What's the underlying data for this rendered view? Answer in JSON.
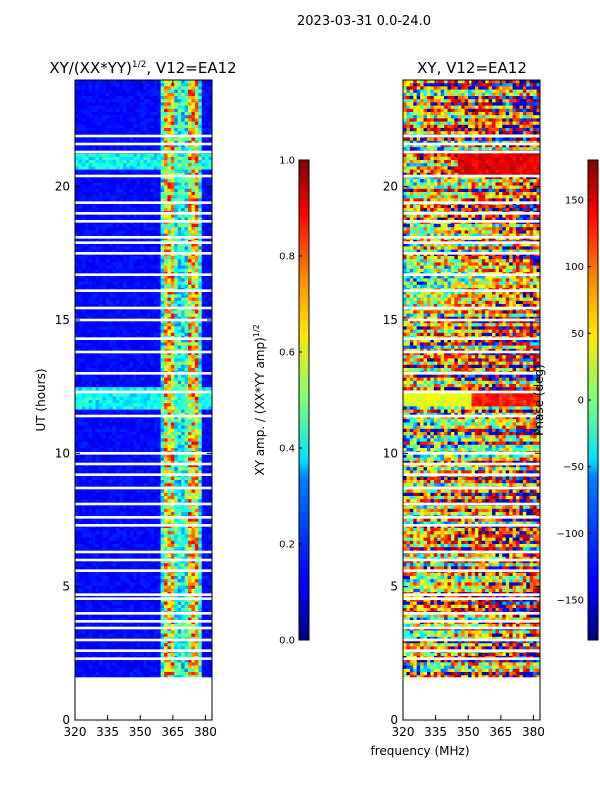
{
  "figure": {
    "suptitle": "2023-03-31 0.0-24.0",
    "xlabel": "frequency (MHz)"
  },
  "chart_data": [
    {
      "type": "heatmap",
      "title": "XY/(XX*YY)^1/2, V12=EA12",
      "title_main": "XY/(XX*YY)",
      "title_sup": "1/2",
      "title_tail": ", V12=EA12",
      "xlabel": "frequency (MHz)",
      "ylabel": "UT (hours)",
      "xlim": [
        320,
        383
      ],
      "ylim": [
        0,
        24
      ],
      "xticks": [
        320,
        335,
        350,
        365,
        380
      ],
      "yticks": [
        0,
        5,
        10,
        15,
        20
      ],
      "data_start_hour": 1.6,
      "bright_band_mhz": [
        361,
        365,
        372,
        376
      ],
      "gap_hours": [
        2.3,
        2.6,
        3.0,
        3.45,
        3.7,
        4.0,
        4.55,
        4.7,
        5.6,
        6.0,
        6.3,
        7.3,
        7.6,
        8.1,
        8.7,
        9.2,
        9.6,
        10.0,
        11.4,
        12.3,
        13.0,
        13.8,
        14.3,
        15.0,
        15.45,
        16.1,
        16.7,
        17.5,
        17.9,
        18.1,
        18.7,
        19.0,
        19.4,
        20.4,
        21.3,
        21.6,
        21.9
      ],
      "colorbar": {
        "label_main": "XY amp. / (XX*YY amp)",
        "label_sup": "1/2",
        "min": 0.0,
        "max": 1.0,
        "ticks": [
          "0.0",
          "0.2",
          "0.4",
          "0.6",
          "0.8",
          "1.0"
        ],
        "colormap": "jet"
      }
    },
    {
      "type": "heatmap",
      "title": "XY, V12=EA12",
      "xlabel": "frequency (MHz)",
      "ylabel": "",
      "xlim": [
        320,
        383
      ],
      "ylim": [
        0,
        24
      ],
      "xticks": [
        320,
        335,
        350,
        365,
        380
      ],
      "yticks": [
        0,
        5,
        10,
        15,
        20
      ],
      "data_start_hour": 1.6,
      "gap_hours": [
        2.3,
        2.6,
        3.0,
        3.45,
        3.7,
        4.0,
        4.55,
        4.7,
        5.6,
        6.0,
        6.3,
        7.3,
        7.6,
        8.1,
        8.7,
        9.2,
        9.6,
        10.0,
        11.4,
        12.3,
        13.0,
        13.8,
        14.3,
        15.0,
        15.45,
        16.1,
        16.7,
        17.5,
        17.9,
        18.1,
        18.7,
        19.0,
        19.4,
        20.4,
        21.3,
        21.6,
        21.9
      ],
      "colorbar": {
        "label": "Phase (deg)",
        "min": -180,
        "max": 180,
        "ticks": [
          "−150",
          "−100",
          "−50",
          "0",
          "50",
          "100",
          "150"
        ],
        "tick_values": [
          -150,
          -100,
          -50,
          0,
          50,
          100,
          150
        ],
        "colormap": "jet"
      }
    }
  ]
}
